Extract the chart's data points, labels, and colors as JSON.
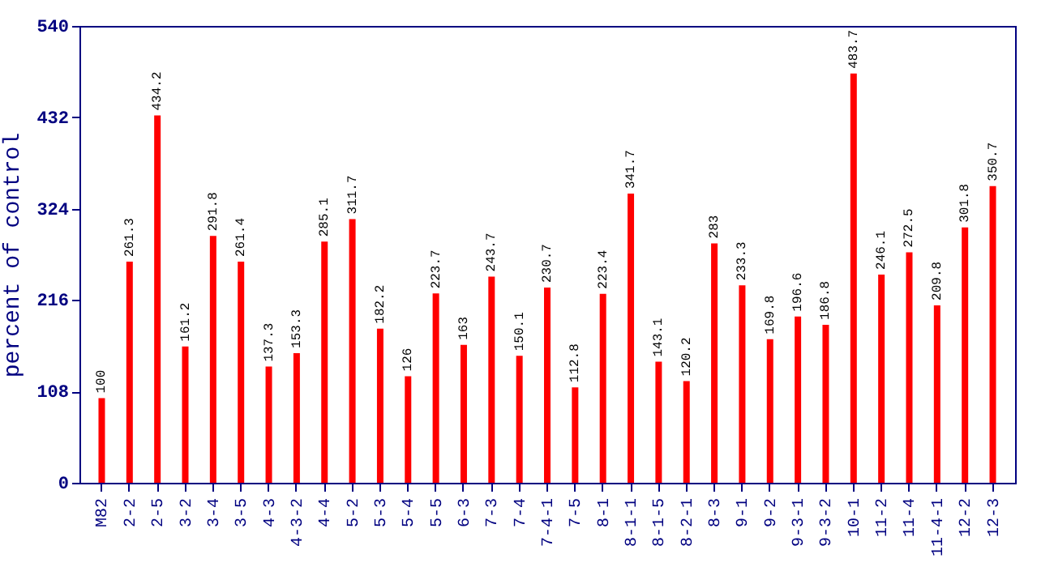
{
  "chart_data": {
    "type": "bar",
    "ylabel": "percent of control",
    "categories": [
      "M82",
      "2-2",
      "2-5",
      "3-2",
      "3-4",
      "3-5",
      "4-3",
      "4-3-2",
      "4-4",
      "5-2",
      "5-3",
      "5-4",
      "5-5",
      "6-3",
      "7-3",
      "7-4",
      "7-4-1",
      "7-5",
      "8-1",
      "8-1-1",
      "8-1-5",
      "8-2-1",
      "8-3",
      "9-1",
      "9-2",
      "9-3-1",
      "9-3-2",
      "10-1",
      "11-2",
      "11-4",
      "11-4-1",
      "12-2",
      "12-3"
    ],
    "values": [
      100,
      261.3,
      434.2,
      161.2,
      291.8,
      261.4,
      137.3,
      153.3,
      285.1,
      311.7,
      182.2,
      126,
      223.7,
      163,
      243.7,
      150.1,
      230.7,
      112.8,
      223.4,
      341.7,
      143.1,
      120.2,
      283,
      233.3,
      169.8,
      196.6,
      186.8,
      483.7,
      246.1,
      272.5,
      209.8,
      301.8,
      350.7
    ],
    "color": "#ff0000",
    "ylim": [
      0,
      540
    ],
    "yticks": [
      0,
      108,
      216,
      324,
      432,
      540
    ],
    "data_labels": true,
    "grid": false
  }
}
